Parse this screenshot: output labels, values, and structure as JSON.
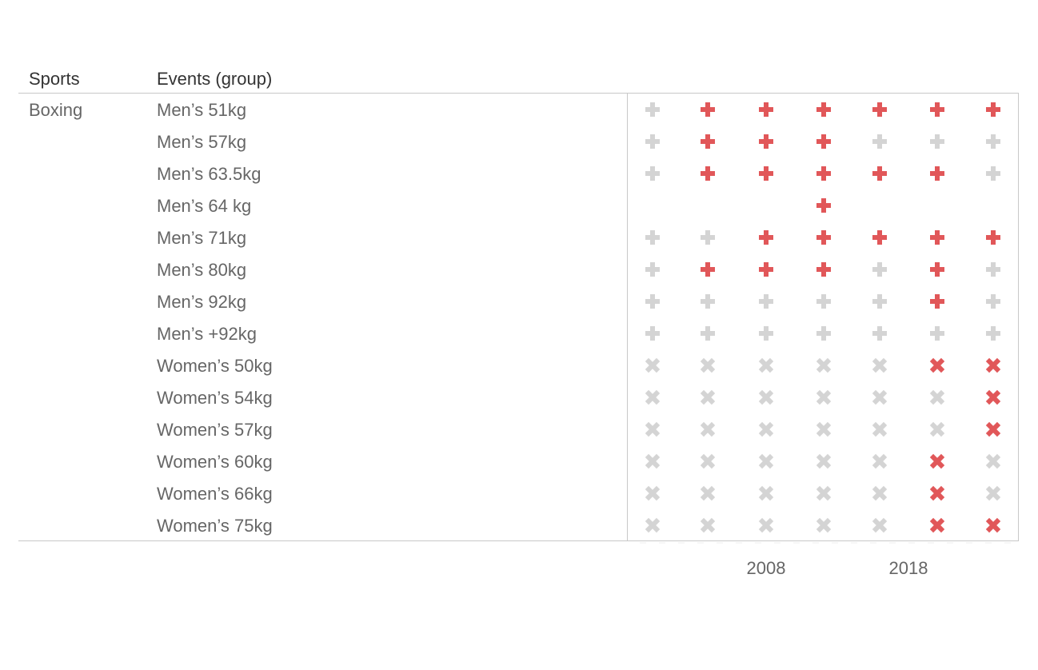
{
  "colors": {
    "highlight": "#e15759",
    "muted": "#d4d4d4",
    "header_text": "#333333",
    "body_text": "#666666",
    "rule": "#c8c8c8"
  },
  "headers": {
    "sports": "Sports",
    "events": "Events (group)"
  },
  "sport_label": "Boxing",
  "chart_data": {
    "type": "table",
    "columns": [
      "col1",
      "col2",
      "col3",
      "col4",
      "col5",
      "col6",
      "col7"
    ],
    "x_tick_labels": [
      "2008",
      "2018"
    ],
    "legend_meaning": {
      "plus": "Men's event",
      "cross": "Women's event"
    },
    "rows": [
      {
        "sport": "Boxing",
        "event": "Men’s 51kg",
        "marker": "plus",
        "cells": [
          "muted",
          "highlight",
          "highlight",
          "highlight",
          "highlight",
          "highlight",
          "highlight"
        ]
      },
      {
        "sport": "Boxing",
        "event": "Men’s 57kg",
        "marker": "plus",
        "cells": [
          "muted",
          "highlight",
          "highlight",
          "highlight",
          "muted",
          "muted",
          "muted"
        ]
      },
      {
        "sport": "Boxing",
        "event": "Men’s 63.5kg",
        "marker": "plus",
        "cells": [
          "muted",
          "highlight",
          "highlight",
          "highlight",
          "highlight",
          "highlight",
          "muted"
        ]
      },
      {
        "sport": "Boxing",
        "event": "Men’s 64 kg",
        "marker": "plus",
        "cells": [
          null,
          null,
          null,
          "highlight",
          null,
          null,
          null
        ]
      },
      {
        "sport": "Boxing",
        "event": "Men’s 71kg",
        "marker": "plus",
        "cells": [
          "muted",
          "muted",
          "highlight",
          "highlight",
          "highlight",
          "highlight",
          "highlight"
        ]
      },
      {
        "sport": "Boxing",
        "event": "Men’s 80kg",
        "marker": "plus",
        "cells": [
          "muted",
          "highlight",
          "highlight",
          "highlight",
          "muted",
          "highlight",
          "muted"
        ]
      },
      {
        "sport": "Boxing",
        "event": "Men’s 92kg",
        "marker": "plus",
        "cells": [
          "muted",
          "muted",
          "muted",
          "muted",
          "muted",
          "highlight",
          "muted"
        ]
      },
      {
        "sport": "Boxing",
        "event": "Men’s +92kg",
        "marker": "plus",
        "cells": [
          "muted",
          "muted",
          "muted",
          "muted",
          "muted",
          "muted",
          "muted"
        ]
      },
      {
        "sport": "Boxing",
        "event": "Women’s 50kg",
        "marker": "cross",
        "cells": [
          "muted",
          "muted",
          "muted",
          "muted",
          "muted",
          "highlight",
          "highlight"
        ]
      },
      {
        "sport": "Boxing",
        "event": "Women’s 54kg",
        "marker": "cross",
        "cells": [
          "muted",
          "muted",
          "muted",
          "muted",
          "muted",
          "muted",
          "highlight"
        ]
      },
      {
        "sport": "Boxing",
        "event": "Women’s 57kg",
        "marker": "cross",
        "cells": [
          "muted",
          "muted",
          "muted",
          "muted",
          "muted",
          "muted",
          "highlight"
        ]
      },
      {
        "sport": "Boxing",
        "event": "Women’s 60kg",
        "marker": "cross",
        "cells": [
          "muted",
          "muted",
          "muted",
          "muted",
          "muted",
          "highlight",
          "muted"
        ]
      },
      {
        "sport": "Boxing",
        "event": "Women’s 66kg",
        "marker": "cross",
        "cells": [
          "muted",
          "muted",
          "muted",
          "muted",
          "muted",
          "highlight",
          "muted"
        ]
      },
      {
        "sport": "Boxing",
        "event": "Women’s 75kg",
        "marker": "cross",
        "cells": [
          "muted",
          "muted",
          "muted",
          "muted",
          "muted",
          "highlight",
          "highlight"
        ]
      }
    ]
  }
}
